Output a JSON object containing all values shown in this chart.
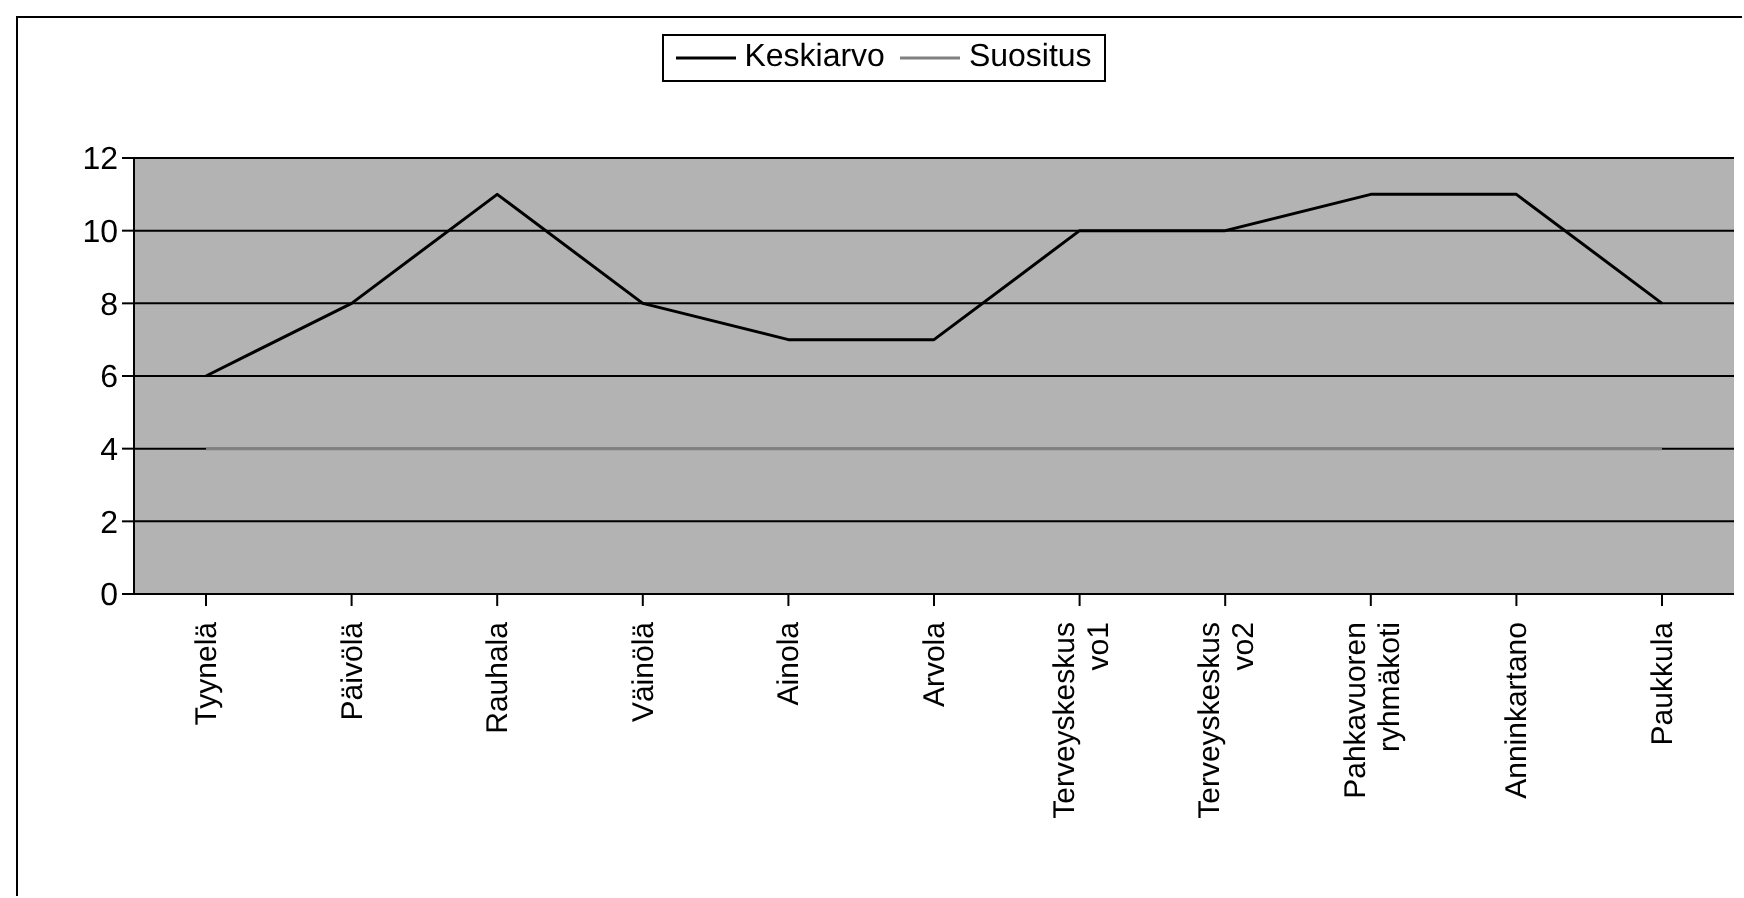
{
  "chart_data": {
    "type": "line",
    "categories": [
      "Tyynelä",
      "Päivölä",
      "Rauhala",
      "Väinölä",
      "Ainola",
      "Arvola",
      "Terveyskeskus vo1",
      "Terveyskeskus vo2",
      "Pahkavuoren ryhmäkoti",
      "Anninkartano",
      "Paukkula"
    ],
    "series": [
      {
        "name": "Keskiarvo",
        "color": "#000000",
        "values": [
          6,
          8,
          11,
          8,
          7,
          7,
          10,
          10,
          11,
          11,
          8
        ]
      },
      {
        "name": "Suositus",
        "color": "#808080",
        "values": [
          4,
          4,
          4,
          4,
          4,
          4,
          4,
          4,
          4,
          4,
          4
        ]
      }
    ],
    "ylim": [
      0,
      12
    ],
    "yticks": [
      0,
      2,
      4,
      6,
      8,
      10,
      12
    ],
    "grid": "y",
    "legend": "top",
    "marker": "none",
    "line_style": "solid"
  }
}
